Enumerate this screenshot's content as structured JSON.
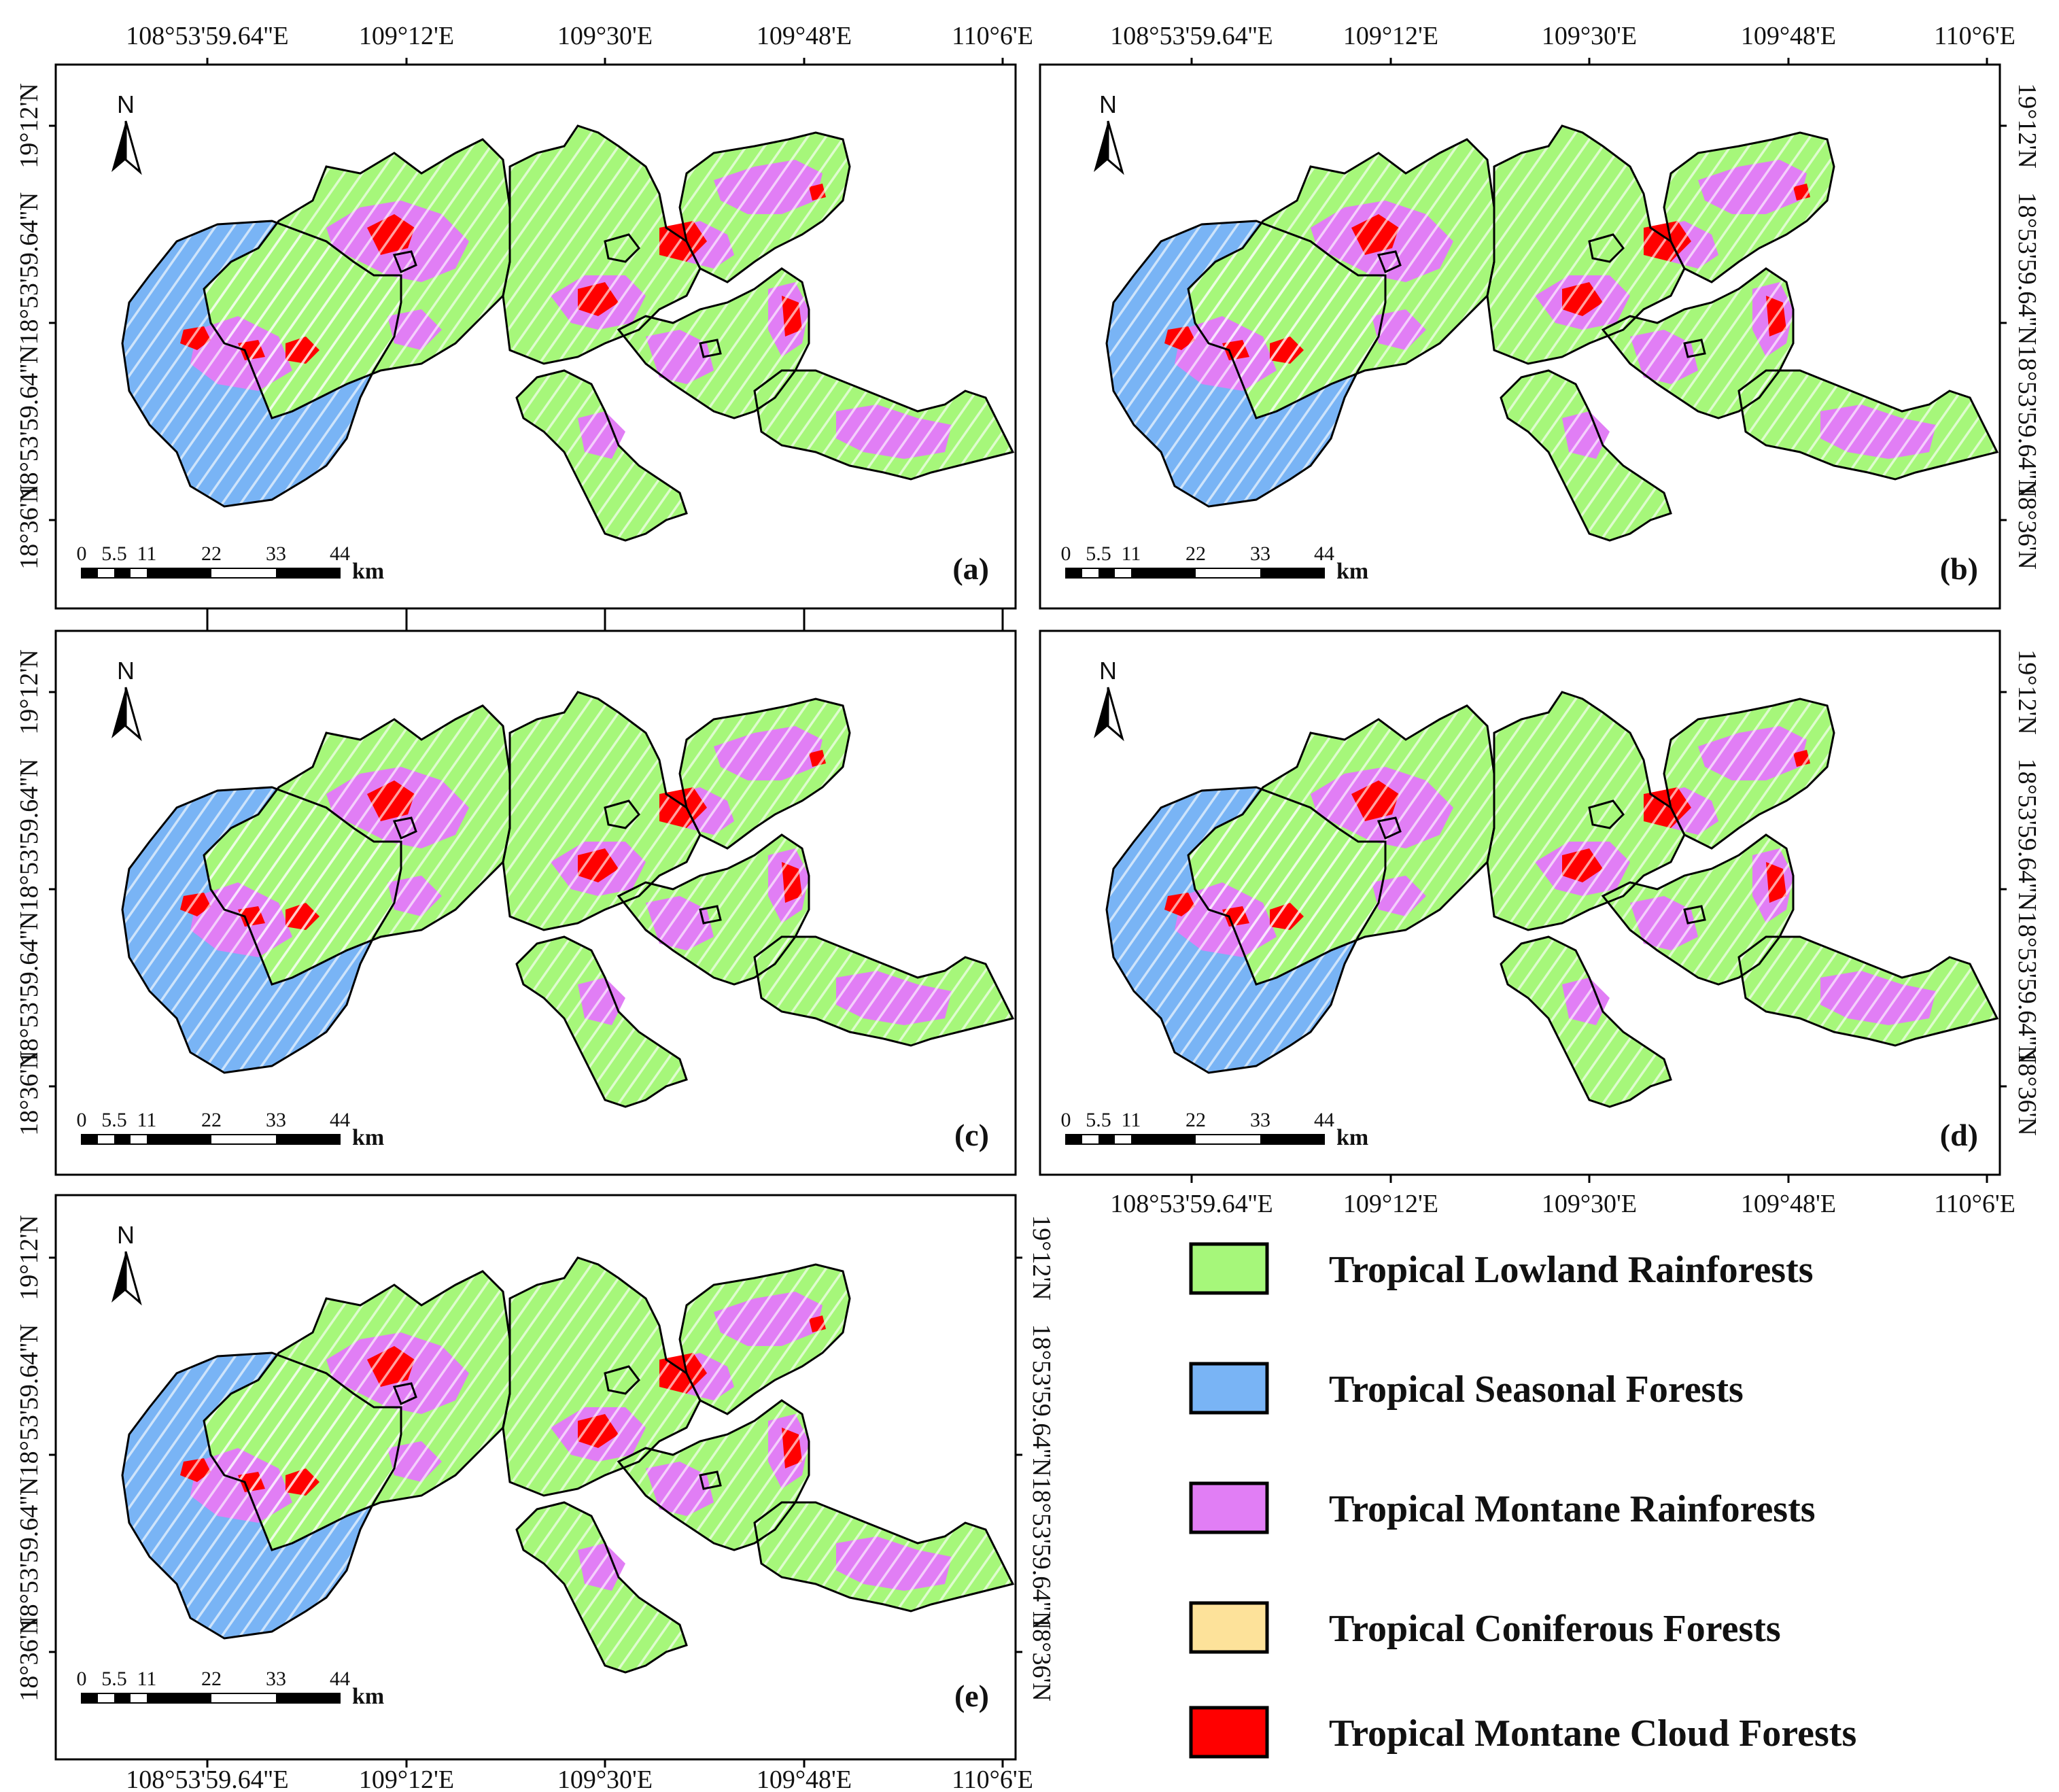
{
  "panels": [
    {
      "label": "(a)"
    },
    {
      "label": "(b)"
    },
    {
      "label": "(c)"
    },
    {
      "label": "(d)"
    },
    {
      "label": "(e)"
    }
  ],
  "longitude_ticks": [
    "108°53'59.64''E",
    "109°12'E",
    "109°30'E",
    "109°48'E",
    "110°6'E"
  ],
  "latitude_ticks": [
    "19°12'N",
    "18°53'59.64''N",
    "18°53'59.64''N",
    "18°36'N"
  ],
  "north_arrow": {
    "letter": "N"
  },
  "scale_bar": {
    "ticks": [
      "0",
      "5.5",
      "11",
      "22",
      "33",
      "44"
    ],
    "unit": "km"
  },
  "legend": [
    {
      "label": "Tropical Lowland Rainforests",
      "color": "#a6f77a"
    },
    {
      "label": "Tropical Seasonal Forests",
      "color": "#79b4f5"
    },
    {
      "label": "Tropical Montane Rainforests",
      "color": "#e17ef5"
    },
    {
      "label": "Tropical Coniferous Forests",
      "color": "#fde29a"
    },
    {
      "label": "Tropical Montane Cloud Forests",
      "color": "#ff0000"
    }
  ]
}
